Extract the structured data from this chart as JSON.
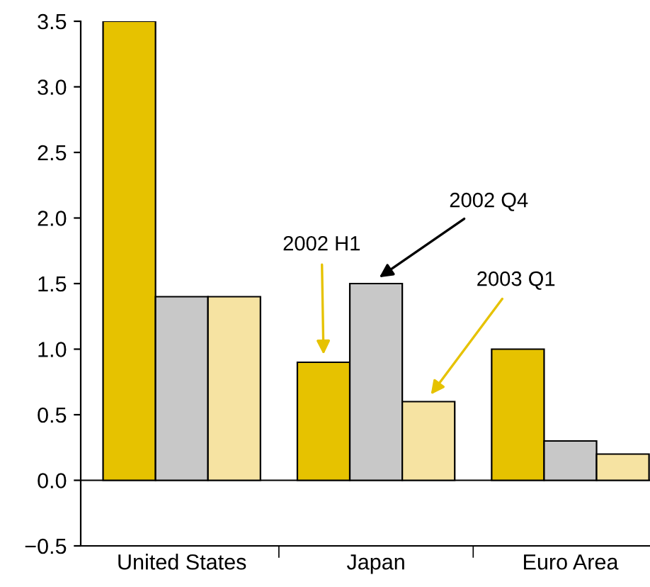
{
  "chart_data": {
    "type": "bar",
    "categories": [
      "United States",
      "Japan",
      "Euro Area"
    ],
    "series": [
      {
        "name": "2002 H1",
        "color": "#e6c200",
        "values": [
          3.5,
          0.9,
          1.0
        ]
      },
      {
        "name": "2002 Q4",
        "color": "#c8c8c8",
        "values": [
          1.4,
          1.5,
          0.3
        ]
      },
      {
        "name": "2003 Q1",
        "color": "#f6e3a2",
        "values": [
          1.4,
          0.6,
          0.2
        ]
      }
    ],
    "ylim": [
      -0.5,
      3.5
    ],
    "yticks": [
      {
        "value": -0.5,
        "label": "−0.5"
      },
      {
        "value": 0,
        "label": "0.0"
      },
      {
        "value": 0.5,
        "label": "0.5"
      },
      {
        "value": 1,
        "label": "1.0"
      },
      {
        "value": 1.5,
        "label": "1.5"
      },
      {
        "value": 2,
        "label": "2.0"
      },
      {
        "value": 2.5,
        "label": "2.5"
      },
      {
        "value": 3,
        "label": "3.0"
      },
      {
        "value": 3.5,
        "label": "3.5"
      }
    ],
    "ref_lines": [
      {
        "axis": "y",
        "value": 0,
        "color": "#000000",
        "line_style": "solid"
      }
    ],
    "legend": false
  }
}
